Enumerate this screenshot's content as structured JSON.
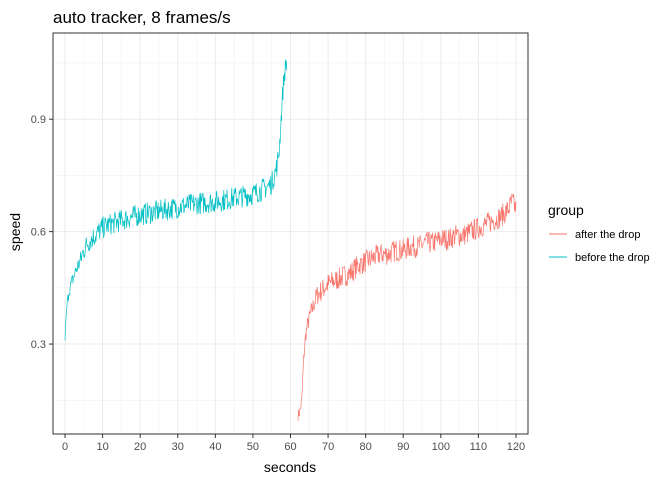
{
  "chart_data": {
    "type": "line",
    "title": "auto tracker, 8 frames/s",
    "xlabel": "seconds",
    "ylabel": "speed",
    "xlim": [
      -3.2,
      123.2
    ],
    "ylim": [
      0.06,
      1.13
    ],
    "x_ticks": [
      0,
      10,
      20,
      30,
      40,
      50,
      60,
      70,
      80,
      90,
      100,
      110,
      120
    ],
    "x_tick_labels": [
      "0",
      "10",
      "20",
      "30",
      "40",
      "50",
      "60",
      "70",
      "80",
      "90",
      "100",
      "110",
      "120"
    ],
    "y_ticks": [
      0.3,
      0.6,
      0.9
    ],
    "y_tick_labels": [
      "0.3",
      "0.6",
      "0.9"
    ],
    "grid": true,
    "legend": {
      "title": "group",
      "placement": "right",
      "entries": [
        "after the drop",
        "before the drop"
      ]
    },
    "series": [
      {
        "name": "after the drop",
        "color": "#F8766D",
        "x": [
          62,
          62.5,
          63,
          63.5,
          64,
          64.5,
          65,
          66,
          67,
          68,
          69,
          70,
          72,
          74,
          76,
          78,
          80,
          82,
          84,
          86,
          88,
          90,
          92,
          94,
          96,
          98,
          100,
          102,
          104,
          106,
          108,
          110,
          112,
          114,
          116,
          118,
          119,
          120
        ],
        "y": [
          0.11,
          0.12,
          0.15,
          0.26,
          0.32,
          0.35,
          0.37,
          0.4,
          0.43,
          0.44,
          0.45,
          0.46,
          0.47,
          0.48,
          0.49,
          0.51,
          0.52,
          0.53,
          0.54,
          0.54,
          0.55,
          0.55,
          0.56,
          0.56,
          0.57,
          0.57,
          0.58,
          0.58,
          0.59,
          0.59,
          0.6,
          0.61,
          0.62,
          0.63,
          0.64,
          0.66,
          0.68,
          0.66
        ],
        "noise": 0.03
      },
      {
        "name": "before the drop",
        "color": "#00BFC4",
        "x": [
          0,
          0.5,
          1,
          2,
          3,
          4,
          5,
          6,
          8,
          10,
          12,
          15,
          18,
          20,
          25,
          30,
          35,
          40,
          45,
          50,
          52,
          54,
          55,
          56,
          56.5,
          57,
          57.5,
          58,
          58.5,
          59
        ],
        "y": [
          0.32,
          0.4,
          0.44,
          0.47,
          0.5,
          0.52,
          0.55,
          0.57,
          0.59,
          0.61,
          0.62,
          0.63,
          0.64,
          0.645,
          0.655,
          0.665,
          0.675,
          0.68,
          0.69,
          0.7,
          0.71,
          0.72,
          0.73,
          0.76,
          0.78,
          0.82,
          0.9,
          0.98,
          1.03,
          1.05
        ],
        "noise": 0.03
      }
    ]
  }
}
